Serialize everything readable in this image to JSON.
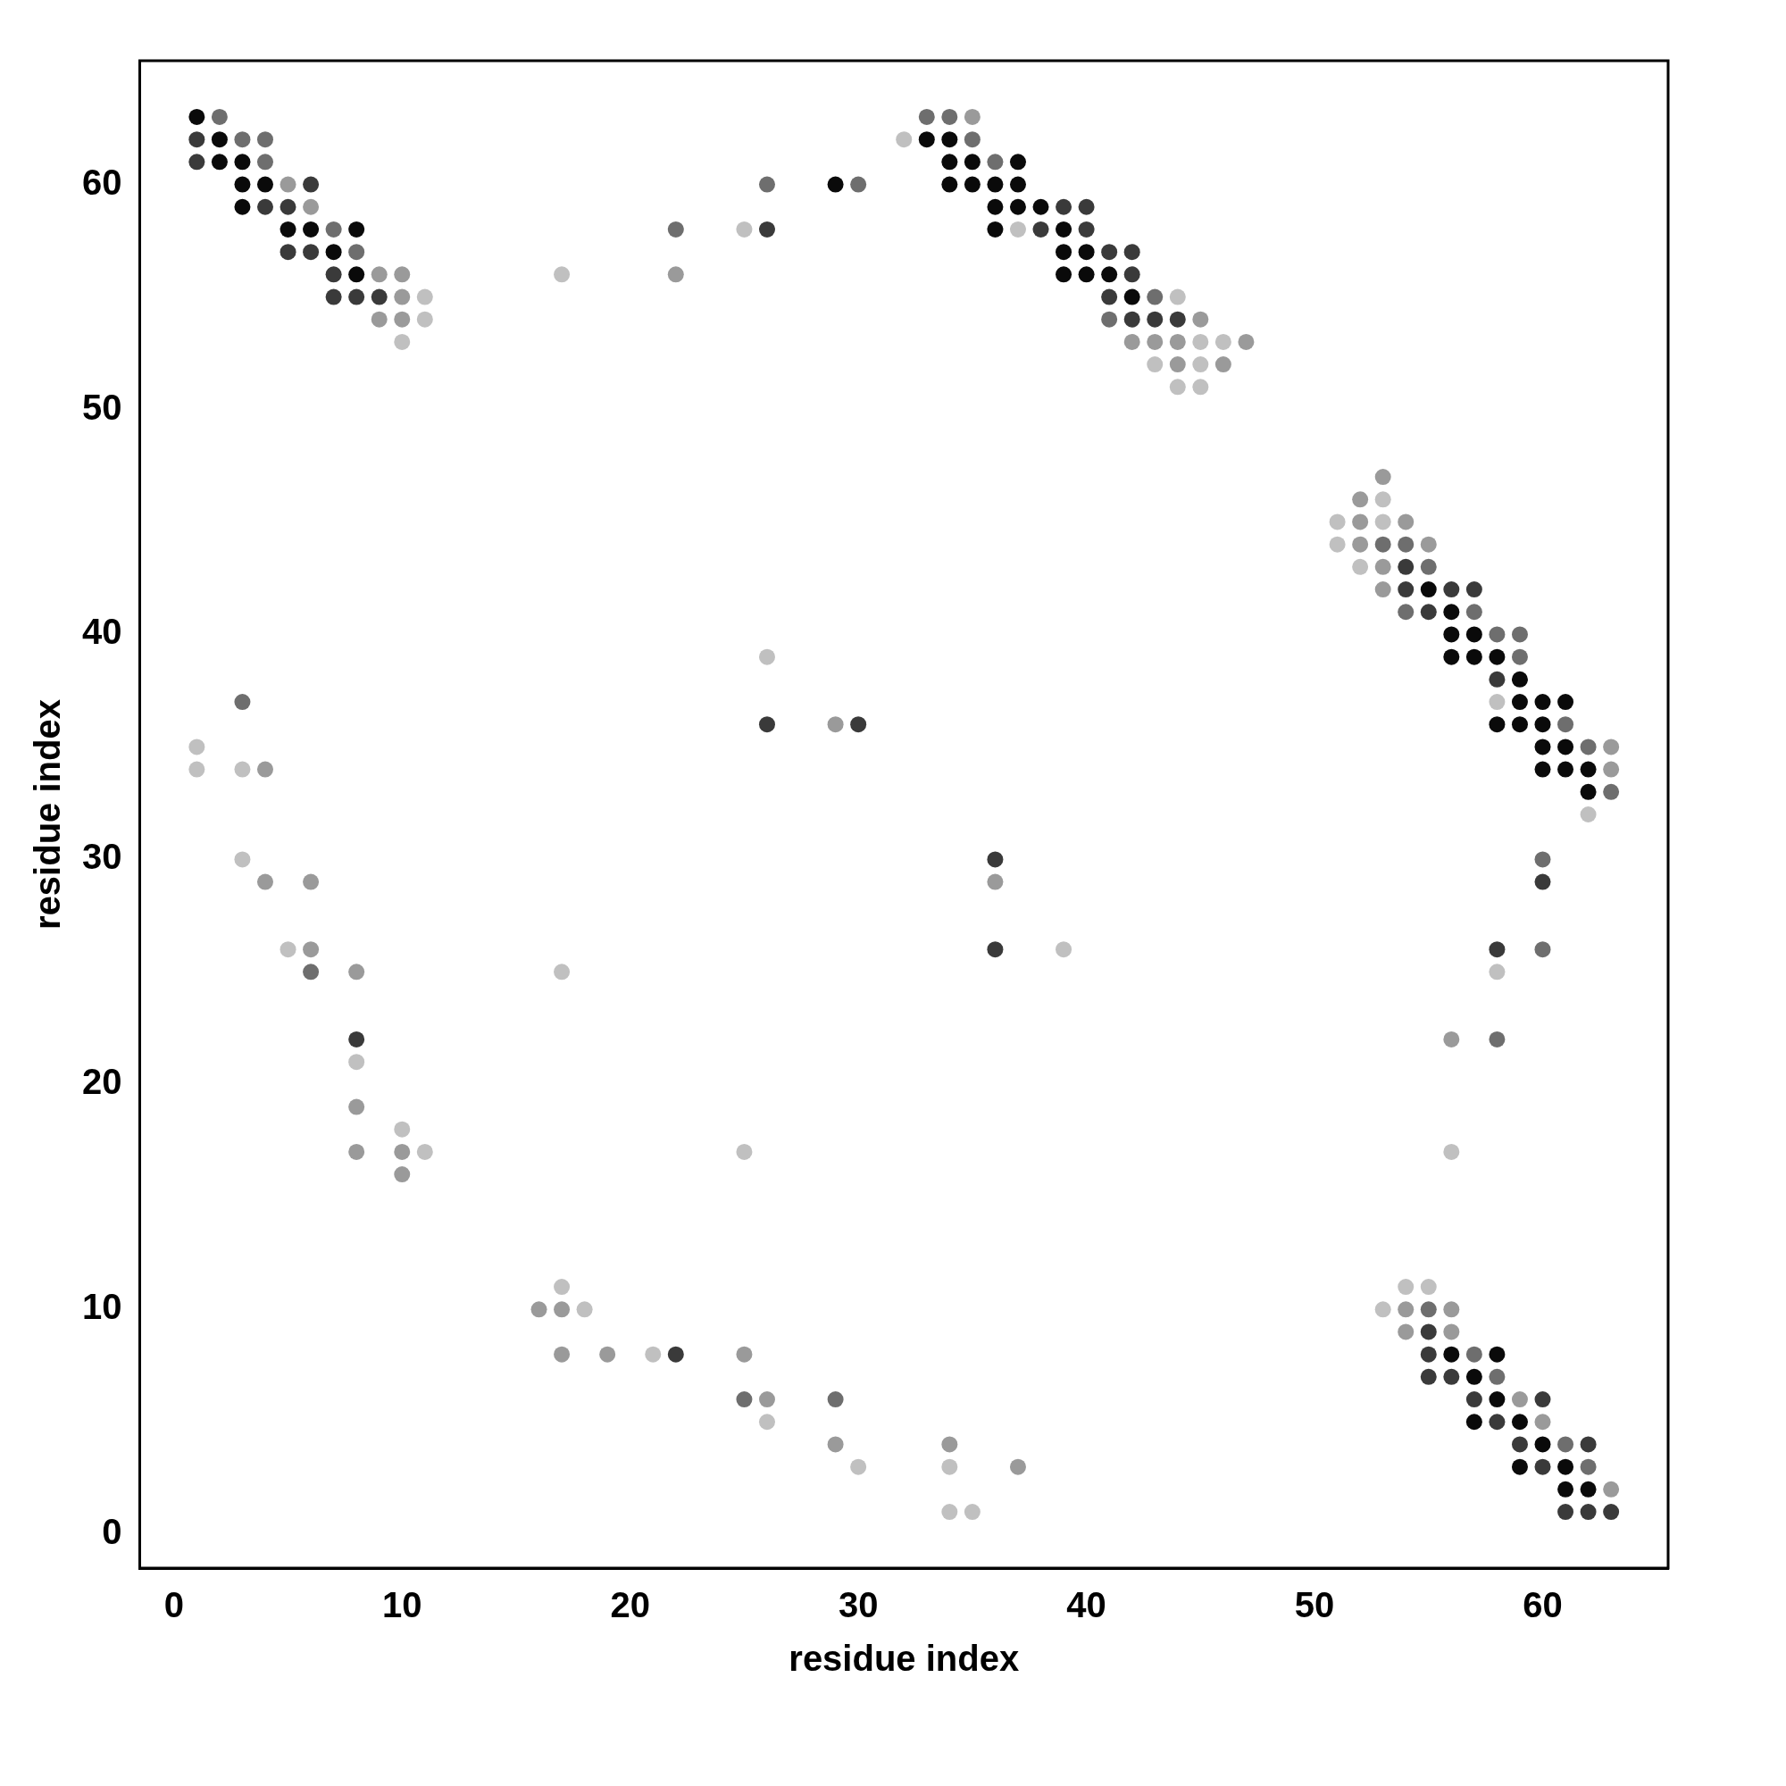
{
  "chart_data": {
    "type": "scatter",
    "xlabel": "residue index",
    "ylabel": "residue index",
    "xlim": [
      -1.5,
      65.5
    ],
    "ylim": [
      -1.5,
      65.5
    ],
    "xticks": [
      0,
      10,
      20,
      30,
      40,
      50,
      60
    ],
    "yticks": [
      0,
      10,
      20,
      30,
      40,
      50,
      60
    ],
    "grid": false,
    "legend": false,
    "marker": "circle",
    "x": [
      1,
      2,
      1,
      2,
      3,
      4,
      1,
      2,
      3,
      4,
      3,
      4,
      5,
      6,
      3,
      4,
      5,
      6,
      5,
      6,
      7,
      8,
      5,
      6,
      7,
      8,
      7,
      8,
      9,
      10,
      7,
      8,
      9,
      10,
      11,
      9,
      10,
      11,
      10,
      17,
      22,
      22,
      25,
      26,
      26,
      29,
      30,
      32,
      33,
      34,
      35,
      33,
      34,
      35,
      34,
      35,
      36,
      37,
      34,
      35,
      36,
      37,
      36,
      37,
      38,
      39,
      40,
      36,
      37,
      38,
      39,
      40,
      39,
      40,
      41,
      42,
      39,
      40,
      41,
      42,
      41,
      42,
      43,
      44,
      41,
      42,
      43,
      44,
      45,
      42,
      43,
      44,
      45,
      46,
      47,
      43,
      44,
      45,
      46,
      44,
      45,
      53,
      52,
      53,
      51,
      52,
      53,
      54,
      51,
      52,
      53,
      54,
      55,
      52,
      53,
      54,
      55,
      53,
      54,
      55,
      56,
      57,
      54,
      55,
      56,
      57,
      56,
      57,
      58,
      59,
      56,
      57,
      58,
      59,
      58,
      59,
      58,
      59,
      60,
      61,
      58,
      59,
      60,
      61,
      60,
      61,
      62,
      63,
      60,
      61,
      62,
      63,
      62,
      63,
      62,
      1,
      1,
      3,
      4,
      3,
      3,
      4,
      6,
      5,
      6,
      6,
      8,
      8,
      8,
      8,
      8,
      10,
      11,
      10,
      10,
      17,
      25,
      26,
      26,
      29,
      30,
      36,
      36,
      36,
      39,
      60,
      60,
      58,
      60,
      58,
      56,
      58,
      56,
      17,
      16,
      17,
      18,
      17,
      19,
      21,
      22,
      25,
      25,
      26,
      29,
      26,
      29,
      34,
      30,
      34,
      37,
      34,
      35,
      54,
      55,
      53,
      54,
      55,
      56,
      54,
      55,
      56,
      55,
      56,
      57,
      58,
      55,
      56,
      57,
      58,
      57,
      58,
      59,
      60,
      57,
      58,
      59,
      60,
      59,
      60,
      61,
      62,
      59,
      60,
      61,
      62,
      61,
      62,
      63,
      61,
      62,
      63
    ],
    "values": [
      63,
      63,
      62,
      62,
      62,
      62,
      61,
      61,
      61,
      61,
      60,
      60,
      60,
      60,
      59,
      59,
      59,
      59,
      58,
      58,
      58,
      58,
      57,
      57,
      57,
      57,
      56,
      56,
      56,
      56,
      55,
      55,
      55,
      55,
      55,
      54,
      54,
      54,
      53,
      56,
      56,
      58,
      58,
      58,
      60,
      60,
      60,
      62,
      62,
      62,
      62,
      63,
      63,
      63,
      61,
      61,
      61,
      61,
      60,
      60,
      60,
      60,
      59,
      59,
      59,
      59,
      59,
      58,
      58,
      58,
      58,
      58,
      57,
      57,
      57,
      57,
      56,
      56,
      56,
      56,
      55,
      55,
      55,
      55,
      54,
      54,
      54,
      54,
      54,
      53,
      53,
      53,
      53,
      53,
      53,
      52,
      52,
      52,
      52,
      51,
      51,
      47,
      46,
      46,
      45,
      45,
      45,
      45,
      44,
      44,
      44,
      44,
      44,
      43,
      43,
      43,
      43,
      42,
      42,
      42,
      42,
      42,
      41,
      41,
      41,
      41,
      40,
      40,
      40,
      40,
      39,
      39,
      39,
      39,
      38,
      38,
      37,
      37,
      37,
      37,
      36,
      36,
      36,
      36,
      35,
      35,
      35,
      35,
      34,
      34,
      34,
      34,
      33,
      33,
      32,
      35,
      34,
      34,
      34,
      37,
      30,
      29,
      29,
      26,
      26,
      25,
      25,
      22,
      21,
      19,
      17,
      17,
      17,
      18,
      16,
      25,
      17,
      39,
      36,
      36,
      36,
      30,
      29,
      26,
      26,
      30,
      29,
      26,
      26,
      25,
      22,
      22,
      17,
      11,
      10,
      10,
      10,
      8,
      8,
      8,
      8,
      8,
      6,
      6,
      6,
      5,
      4,
      4,
      3,
      3,
      3,
      1,
      1,
      11,
      11,
      10,
      10,
      10,
      10,
      9,
      9,
      9,
      8,
      8,
      8,
      8,
      7,
      7,
      7,
      7,
      6,
      6,
      6,
      6,
      5,
      5,
      5,
      5,
      4,
      4,
      4,
      4,
      3,
      3,
      3,
      3,
      2,
      2,
      2,
      1,
      1,
      1
    ],
    "colors": [
      "#0a0a0a",
      "#6e6e6e",
      "#3a3a3a",
      "#0a0a0a",
      "#6e6e6e",
      "#6e6e6e",
      "#3a3a3a",
      "#0a0a0a",
      "#0a0a0a",
      "#6e6e6e",
      "#0a0a0a",
      "#0a0a0a",
      "#9a9a9a",
      "#3a3a3a",
      "#0a0a0a",
      "#3a3a3a",
      "#3a3a3a",
      "#9a9a9a",
      "#0a0a0a",
      "#0a0a0a",
      "#6e6e6e",
      "#0a0a0a",
      "#3a3a3a",
      "#3a3a3a",
      "#0a0a0a",
      "#6e6e6e",
      "#3a3a3a",
      "#0a0a0a",
      "#9a9a9a",
      "#9a9a9a",
      "#3a3a3a",
      "#3a3a3a",
      "#3a3a3a",
      "#9a9a9a",
      "#c0c0c0",
      "#9a9a9a",
      "#9a9a9a",
      "#c0c0c0",
      "#c0c0c0",
      "#c0c0c0",
      "#9a9a9a",
      "#6e6e6e",
      "#c0c0c0",
      "#3a3a3a",
      "#6e6e6e",
      "#0a0a0a",
      "#6e6e6e",
      "#c0c0c0",
      "#0a0a0a",
      "#0a0a0a",
      "#6e6e6e",
      "#6e6e6e",
      "#6e6e6e",
      "#9a9a9a",
      "#0a0a0a",
      "#0a0a0a",
      "#6e6e6e",
      "#0a0a0a",
      "#0a0a0a",
      "#0a0a0a",
      "#0a0a0a",
      "#0a0a0a",
      "#0a0a0a",
      "#0a0a0a",
      "#0a0a0a",
      "#3a3a3a",
      "#3a3a3a",
      "#0a0a0a",
      "#c0c0c0",
      "#3a3a3a",
      "#0a0a0a",
      "#3a3a3a",
      "#0a0a0a",
      "#0a0a0a",
      "#3a3a3a",
      "#3a3a3a",
      "#0a0a0a",
      "#0a0a0a",
      "#0a0a0a",
      "#3a3a3a",
      "#3a3a3a",
      "#0a0a0a",
      "#6e6e6e",
      "#c0c0c0",
      "#6e6e6e",
      "#3a3a3a",
      "#3a3a3a",
      "#3a3a3a",
      "#9a9a9a",
      "#9a9a9a",
      "#9a9a9a",
      "#9a9a9a",
      "#c0c0c0",
      "#c0c0c0",
      "#9a9a9a",
      "#c0c0c0",
      "#9a9a9a",
      "#c0c0c0",
      "#9a9a9a",
      "#c0c0c0",
      "#c0c0c0",
      "#9a9a9a",
      "#9a9a9a",
      "#c0c0c0",
      "#c0c0c0",
      "#9a9a9a",
      "#c0c0c0",
      "#9a9a9a",
      "#c0c0c0",
      "#9a9a9a",
      "#6e6e6e",
      "#6e6e6e",
      "#9a9a9a",
      "#c0c0c0",
      "#9a9a9a",
      "#3a3a3a",
      "#6e6e6e",
      "#9a9a9a",
      "#3a3a3a",
      "#0a0a0a",
      "#3a3a3a",
      "#3a3a3a",
      "#6e6e6e",
      "#3a3a3a",
      "#0a0a0a",
      "#6e6e6e",
      "#0a0a0a",
      "#0a0a0a",
      "#6e6e6e",
      "#6e6e6e",
      "#0a0a0a",
      "#0a0a0a",
      "#0a0a0a",
      "#6e6e6e",
      "#3a3a3a",
      "#0a0a0a",
      "#c0c0c0",
      "#0a0a0a",
      "#0a0a0a",
      "#0a0a0a",
      "#0a0a0a",
      "#0a0a0a",
      "#0a0a0a",
      "#6e6e6e",
      "#0a0a0a",
      "#0a0a0a",
      "#6e6e6e",
      "#9a9a9a",
      "#0a0a0a",
      "#0a0a0a",
      "#0a0a0a",
      "#9a9a9a",
      "#0a0a0a",
      "#6e6e6e",
      "#c0c0c0",
      "#c0c0c0",
      "#c0c0c0",
      "#c0c0c0",
      "#9a9a9a",
      "#6e6e6e",
      "#c0c0c0",
      "#9a9a9a",
      "#9a9a9a",
      "#c0c0c0",
      "#9a9a9a",
      "#6e6e6e",
      "#9a9a9a",
      "#3a3a3a",
      "#c0c0c0",
      "#9a9a9a",
      "#9a9a9a",
      "#9a9a9a",
      "#c0c0c0",
      "#c0c0c0",
      "#9a9a9a",
      "#c0c0c0",
      "#c0c0c0",
      "#c0c0c0",
      "#3a3a3a",
      "#9a9a9a",
      "#3a3a3a",
      "#3a3a3a",
      "#9a9a9a",
      "#3a3a3a",
      "#c0c0c0",
      "#6e6e6e",
      "#3a3a3a",
      "#3a3a3a",
      "#6e6e6e",
      "#c0c0c0",
      "#9a9a9a",
      "#6e6e6e",
      "#c0c0c0",
      "#c0c0c0",
      "#9a9a9a",
      "#9a9a9a",
      "#c0c0c0",
      "#9a9a9a",
      "#9a9a9a",
      "#c0c0c0",
      "#3a3a3a",
      "#9a9a9a",
      "#6e6e6e",
      "#9a9a9a",
      "#6e6e6e",
      "#c0c0c0",
      "#9a9a9a",
      "#9a9a9a",
      "#c0c0c0",
      "#c0c0c0",
      "#9a9a9a",
      "#c0c0c0",
      "#c0c0c0",
      "#c0c0c0",
      "#c0c0c0",
      "#c0c0c0",
      "#9a9a9a",
      "#6e6e6e",
      "#9a9a9a",
      "#9a9a9a",
      "#3a3a3a",
      "#9a9a9a",
      "#3a3a3a",
      "#0a0a0a",
      "#6e6e6e",
      "#0a0a0a",
      "#3a3a3a",
      "#3a3a3a",
      "#0a0a0a",
      "#6e6e6e",
      "#3a3a3a",
      "#0a0a0a",
      "#9a9a9a",
      "#3a3a3a",
      "#0a0a0a",
      "#3a3a3a",
      "#0a0a0a",
      "#9a9a9a",
      "#3a3a3a",
      "#0a0a0a",
      "#6e6e6e",
      "#3a3a3a",
      "#0a0a0a",
      "#3a3a3a",
      "#0a0a0a",
      "#6e6e6e",
      "#0a0a0a",
      "#0a0a0a",
      "#9a9a9a",
      "#3a3a3a",
      "#3a3a3a",
      "#3a3a3a"
    ]
  }
}
